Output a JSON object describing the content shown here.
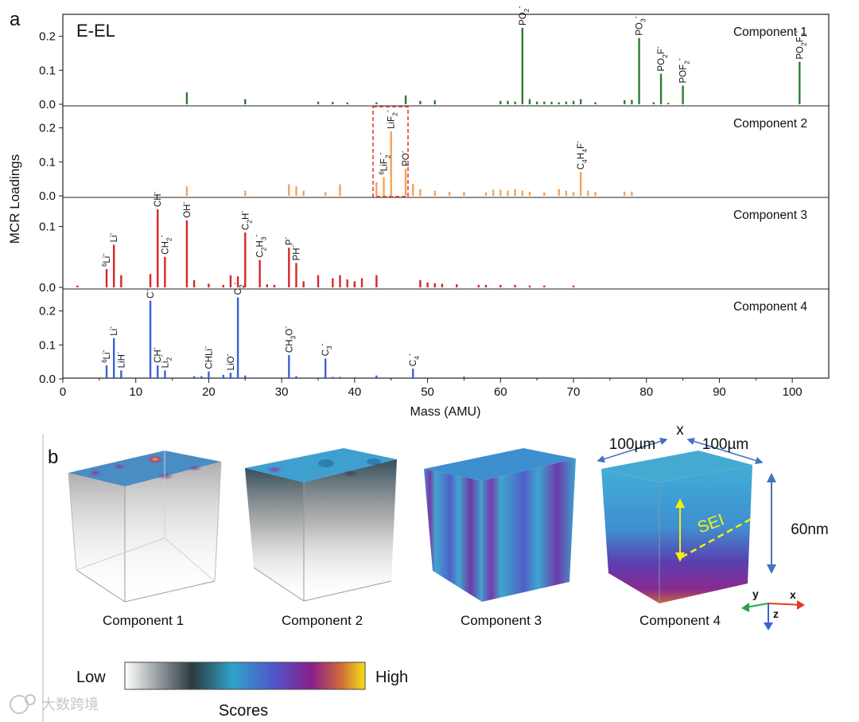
{
  "panel_a_letter": "a",
  "panel_b_letter": "b",
  "chart_data": {
    "type": "bar",
    "title": "E-EL",
    "xlabel": "Mass (AMU)",
    "ylabel": "MCR Loadings",
    "xlim": [
      0,
      105
    ],
    "xticks": [
      0,
      10,
      20,
      30,
      40,
      50,
      60,
      70,
      80,
      90,
      100
    ],
    "panels": [
      {
        "name": "Component 1",
        "color": "#2e7d32",
        "ylim": [
          0,
          0.26
        ],
        "yticks": [
          "0.0",
          "0.1",
          "0.2"
        ],
        "ytick_values": [
          0,
          0.1,
          0.2
        ],
        "x": [
          17,
          25,
          35,
          37,
          39,
          43,
          47,
          49,
          51,
          60,
          61,
          62,
          63,
          64,
          65,
          66,
          67,
          68,
          69,
          70,
          71,
          73,
          77,
          78,
          79,
          81,
          82,
          83,
          85,
          101
        ],
        "values": [
          0.035,
          0.015,
          0.008,
          0.007,
          0.005,
          0.006,
          0.026,
          0.01,
          0.012,
          0.01,
          0.01,
          0.008,
          0.225,
          0.015,
          0.008,
          0.008,
          0.007,
          0.006,
          0.008,
          0.01,
          0.015,
          0.006,
          0.012,
          0.013,
          0.195,
          0.006,
          0.09,
          0.004,
          0.055,
          0.125
        ],
        "peaks": [
          {
            "x": 63,
            "value": 0.225,
            "label": "PO2-"
          },
          {
            "x": 79,
            "value": 0.195,
            "label": "PO3-"
          },
          {
            "x": 82,
            "value": 0.09,
            "label": "PO2F-"
          },
          {
            "x": 85,
            "value": 0.055,
            "label": "POF2-"
          },
          {
            "x": 101,
            "value": 0.125,
            "label": "PO2F2-"
          }
        ]
      },
      {
        "name": "Component 2",
        "color": "#f4a259",
        "ylim": [
          0,
          0.26
        ],
        "yticks": [
          "0.0",
          "0.1",
          "0.2"
        ],
        "ytick_values": [
          0,
          0.1,
          0.2
        ],
        "x": [
          17,
          25,
          31,
          32,
          33,
          36,
          38,
          43,
          44,
          45,
          47,
          48,
          49,
          51,
          53,
          55,
          58,
          59,
          60,
          61,
          62,
          63,
          64,
          66,
          68,
          69,
          70,
          71,
          72,
          73,
          77,
          78
        ],
        "values": [
          0.028,
          0.015,
          0.034,
          0.028,
          0.015,
          0.012,
          0.034,
          0.04,
          0.055,
          0.19,
          0.08,
          0.035,
          0.02,
          0.015,
          0.012,
          0.012,
          0.01,
          0.018,
          0.018,
          0.015,
          0.02,
          0.015,
          0.012,
          0.01,
          0.02,
          0.015,
          0.012,
          0.07,
          0.015,
          0.012,
          0.012,
          0.012
        ],
        "peaks": [
          {
            "x": 44,
            "value": 0.055,
            "label": "6LiF2-"
          },
          {
            "x": 45,
            "value": 0.19,
            "label": "LiF2-"
          },
          {
            "x": 47,
            "value": 0.08,
            "label": "PO-"
          },
          {
            "x": 71,
            "value": 0.07,
            "label": "C4H4F-"
          }
        ],
        "annotation": "dashed red box around 6LiF2- and LiF2- peaks (x 41-46)"
      },
      {
        "name": "Component 3",
        "color": "#d62728",
        "ylim": [
          0,
          0.145
        ],
        "yticks": [
          "0.0",
          "0.1"
        ],
        "ytick_values": [
          0,
          0.1
        ],
        "x": [
          2,
          6,
          7,
          8,
          12,
          13,
          14,
          17,
          18,
          20,
          22,
          23,
          24,
          25,
          27,
          28,
          29,
          31,
          32,
          33,
          35,
          37,
          38,
          39,
          40,
          41,
          43,
          49,
          50,
          51,
          52,
          54,
          57,
          58,
          60,
          62,
          64,
          66,
          70
        ],
        "values": [
          0.003,
          0.03,
          0.07,
          0.02,
          0.022,
          0.128,
          0.05,
          0.11,
          0.012,
          0.006,
          0.004,
          0.02,
          0.018,
          0.09,
          0.045,
          0.005,
          0.004,
          0.065,
          0.04,
          0.01,
          0.02,
          0.015,
          0.02,
          0.013,
          0.01,
          0.015,
          0.02,
          0.012,
          0.008,
          0.007,
          0.006,
          0.005,
          0.004,
          0.004,
          0.004,
          0.004,
          0.003,
          0.003,
          0.003
        ],
        "peaks": [
          {
            "x": 6,
            "value": 0.03,
            "label": "6Li-"
          },
          {
            "x": 7,
            "value": 0.07,
            "label": "Li-"
          },
          {
            "x": 13,
            "value": 0.128,
            "label": "CH-"
          },
          {
            "x": 14,
            "value": 0.05,
            "label": "CH2-"
          },
          {
            "x": 17,
            "value": 0.11,
            "label": "OH-"
          },
          {
            "x": 25,
            "value": 0.09,
            "label": "C2H-"
          },
          {
            "x": 27,
            "value": 0.045,
            "label": "C2H3-"
          },
          {
            "x": 31,
            "value": 0.065,
            "label": "P-"
          },
          {
            "x": 32,
            "value": 0.04,
            "label": "PH-"
          }
        ]
      },
      {
        "name": "Component 4",
        "color": "#3a62d8",
        "ylim": [
          0,
          0.26
        ],
        "yticks": [
          "0.0",
          "0.1",
          "0.2"
        ],
        "ytick_values": [
          0,
          0.1,
          0.2
        ],
        "x": [
          6,
          7,
          8,
          12,
          13,
          14,
          18,
          19,
          20,
          22,
          23,
          24,
          25,
          31,
          32,
          36,
          37,
          38,
          40,
          43,
          48,
          55,
          60,
          72
        ],
        "values": [
          0.04,
          0.12,
          0.025,
          0.23,
          0.04,
          0.025,
          0.008,
          0.008,
          0.022,
          0.012,
          0.018,
          0.24,
          0.01,
          0.07,
          0.008,
          0.06,
          0.006,
          0.006,
          0.005,
          0.01,
          0.03,
          0.007,
          0.005,
          0.004
        ],
        "peaks": [
          {
            "x": 6,
            "value": 0.04,
            "label": "6Li-"
          },
          {
            "x": 7,
            "value": 0.12,
            "label": "Li-"
          },
          {
            "x": 8,
            "value": 0.025,
            "label": "LiH-"
          },
          {
            "x": 12,
            "value": 0.23,
            "label": "C-"
          },
          {
            "x": 13,
            "value": 0.04,
            "label": "CH-"
          },
          {
            "x": 14,
            "value": 0.025,
            "label": "Li2-"
          },
          {
            "x": 20,
            "value": 0.022,
            "label": "CHLi-"
          },
          {
            "x": 23,
            "value": 0.018,
            "label": "LiO-"
          },
          {
            "x": 24,
            "value": 0.24,
            "label": "C2-"
          },
          {
            "x": 31,
            "value": 0.07,
            "label": "CH3O-"
          },
          {
            "x": 36,
            "value": 0.06,
            "label": "C3-"
          },
          {
            "x": 48,
            "value": 0.03,
            "label": "C4-"
          }
        ]
      }
    ]
  },
  "panel_b": {
    "cubes": [
      {
        "label": "Component 1"
      },
      {
        "label": "Component 2"
      },
      {
        "label": "Component 3"
      },
      {
        "label": "Component 4"
      }
    ],
    "dimensions": {
      "x_label": "x",
      "width_1": "100µm",
      "width_2": "100µm",
      "depth": "60nm"
    },
    "sei_label": "SEI",
    "axes": {
      "x": "x",
      "y": "y",
      "z": "z"
    },
    "colorbar": {
      "low": "Low",
      "high": "High",
      "title": "Scores"
    }
  },
  "watermark": "大数跨境"
}
